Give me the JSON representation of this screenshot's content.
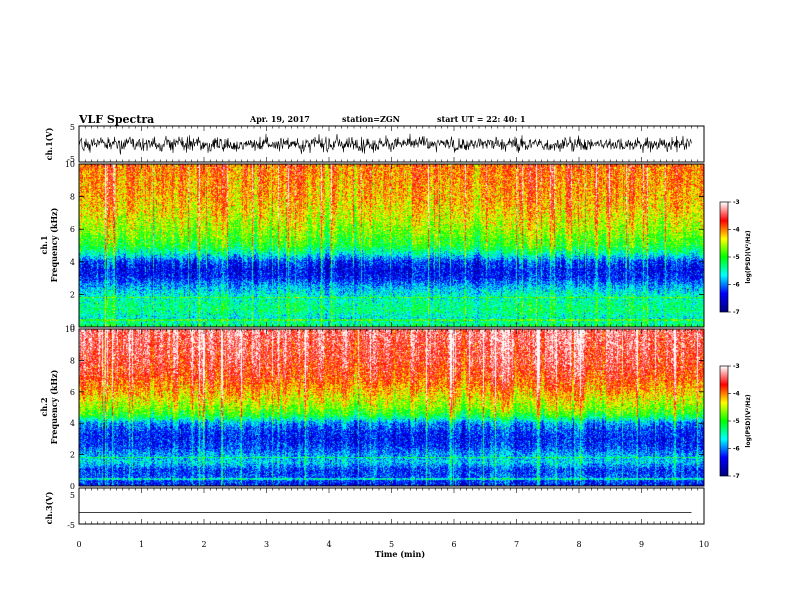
{
  "header": {
    "title": "VLF Spectra",
    "date": "Apr. 19, 2017",
    "station": "station=ZGN",
    "start": "start  UT  =   22: 40: 1"
  },
  "chart_data": [
    {
      "id": "ch1_waveform",
      "type": "line",
      "ylabel": "ch.1(V)",
      "ylim": [
        -5,
        5
      ],
      "yticks": [
        "5",
        "-5"
      ],
      "xlim": [
        0,
        9.8
      ],
      "note": "dense noisy waveform, amplitude approx -2.5 to 2.5 V"
    },
    {
      "id": "ch1_spectrogram",
      "type": "heatmap",
      "ylabel": "ch.1\nFrequency (kHz)",
      "ylim": [
        0,
        10
      ],
      "yticks": [
        "0",
        "2",
        "4",
        "6",
        "8",
        "10"
      ],
      "xlim": [
        0,
        9.8
      ],
      "colorbar": {
        "label": "log(PSD)(V²/Hz)",
        "range": [
          -7,
          -3
        ],
        "ticks": [
          "-3",
          "-4",
          "-5",
          "-6",
          "-7"
        ]
      },
      "profile_log_psd": [
        {
          "f_khz": 0.0,
          "log_psd": -5.2
        },
        {
          "f_khz": 0.5,
          "log_psd": -5.6
        },
        {
          "f_khz": 1.0,
          "log_psd": -5.3
        },
        {
          "f_khz": 1.5,
          "log_psd": -5.4
        },
        {
          "f_khz": 2.0,
          "log_psd": -5.6
        },
        {
          "f_khz": 2.5,
          "log_psd": -5.9
        },
        {
          "f_khz": 3.0,
          "log_psd": -6.3
        },
        {
          "f_khz": 3.5,
          "log_psd": -6.4
        },
        {
          "f_khz": 4.0,
          "log_psd": -6.2
        },
        {
          "f_khz": 4.5,
          "log_psd": -5.5
        },
        {
          "f_khz": 5.0,
          "log_psd": -5.0
        },
        {
          "f_khz": 6.0,
          "log_psd": -4.6
        },
        {
          "f_khz": 7.0,
          "log_psd": -4.3
        },
        {
          "f_khz": 8.0,
          "log_psd": -4.1
        },
        {
          "f_khz": 9.0,
          "log_psd": -4.0
        },
        {
          "f_khz": 10.0,
          "log_psd": -3.9
        }
      ]
    },
    {
      "id": "ch2_spectrogram",
      "type": "heatmap",
      "ylabel": "ch.2\nFrequency (kHz)",
      "ylim": [
        0,
        10
      ],
      "yticks": [
        "0",
        "2",
        "4",
        "6",
        "8",
        "10"
      ],
      "xlim": [
        0,
        9.8
      ],
      "colorbar": {
        "label": "log(PSD)(V²/Hz)",
        "range": [
          -7,
          -3
        ],
        "ticks": [
          "-3",
          "-4",
          "-5",
          "-6",
          "-7"
        ]
      },
      "profile_log_psd": [
        {
          "f_khz": 0.0,
          "log_psd": -6.3
        },
        {
          "f_khz": 0.5,
          "log_psd": -6.1
        },
        {
          "f_khz": 1.0,
          "log_psd": -6.2
        },
        {
          "f_khz": 1.5,
          "log_psd": -5.7
        },
        {
          "f_khz": 2.0,
          "log_psd": -5.9
        },
        {
          "f_khz": 2.5,
          "log_psd": -6.2
        },
        {
          "f_khz": 3.0,
          "log_psd": -6.3
        },
        {
          "f_khz": 3.5,
          "log_psd": -6.2
        },
        {
          "f_khz": 4.0,
          "log_psd": -5.9
        },
        {
          "f_khz": 4.5,
          "log_psd": -5.0
        },
        {
          "f_khz": 5.0,
          "log_psd": -4.6
        },
        {
          "f_khz": 6.0,
          "log_psd": -4.1
        },
        {
          "f_khz": 7.0,
          "log_psd": -3.7
        },
        {
          "f_khz": 8.0,
          "log_psd": -3.5
        },
        {
          "f_khz": 9.0,
          "log_psd": -3.4
        },
        {
          "f_khz": 10.0,
          "log_psd": -3.3
        }
      ]
    },
    {
      "id": "ch3_waveform",
      "type": "line",
      "ylabel": "ch.3(V)",
      "ylim": [
        -5,
        5
      ],
      "yticks": [
        "5",
        "-5"
      ],
      "xlim": [
        0,
        9.8
      ],
      "x": [
        0,
        9.8
      ],
      "values": [
        -1.8,
        -1.8
      ]
    }
  ],
  "xaxis": {
    "label": "Time (min)",
    "ticks": [
      "0",
      "1",
      "2",
      "3",
      "4",
      "5",
      "6",
      "7",
      "8",
      "9",
      "10"
    ],
    "xlim": [
      0,
      10
    ]
  },
  "colormap": [
    "#000080",
    "#0000ff",
    "#00ffff",
    "#00ff00",
    "#ffff00",
    "#ff0000",
    "#ffffff"
  ]
}
